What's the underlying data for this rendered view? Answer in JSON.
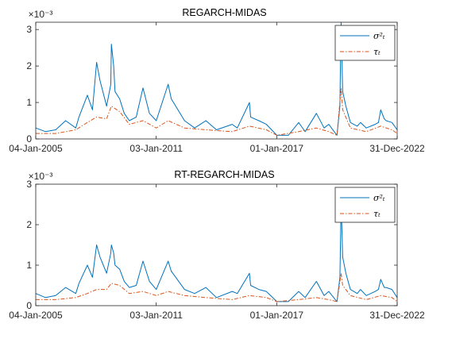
{
  "chart_data": [
    {
      "type": "line",
      "title": "REGARCH-MIDAS",
      "exponent_label": "×10⁻³",
      "xlabel": "",
      "ylabel": "",
      "xlim": [
        "2005-01-04",
        "2022-12-31"
      ],
      "ylim": [
        0,
        3.2
      ],
      "yscale_factor": 0.001,
      "yticks": [
        "0",
        "1",
        "2",
        "3"
      ],
      "xticks": [
        "04-Jan-2005",
        "03-Jan-2011",
        "01-Jan-2017",
        "31-Dec-2022"
      ],
      "grid": false,
      "legend": {
        "placement": "top-right",
        "entries": [
          "σ²ₜ",
          "τₜ"
        ]
      },
      "series": [
        {
          "name": "σ²ₜ",
          "color": "#0072BD",
          "style": "solid",
          "x": [
            "2005-01-04",
            "2005-07-01",
            "2006-01-02",
            "2006-07-01",
            "2007-01-02",
            "2007-03-01",
            "2007-08-01",
            "2007-11-01",
            "2008-01-15",
            "2008-03-17",
            "2008-07-15",
            "2008-09-29",
            "2008-10-10",
            "2008-11-20",
            "2008-12-15",
            "2009-03-09",
            "2009-06-01",
            "2009-09-01",
            "2010-01-04",
            "2010-05-07",
            "2010-09-01",
            "2011-01-03",
            "2011-08-08",
            "2011-10-04",
            "2012-06-01",
            "2012-12-01",
            "2013-06-24",
            "2014-01-02",
            "2014-10-15",
            "2015-01-15",
            "2015-08-24",
            "2015-09-15",
            "2016-02-11",
            "2016-06-27",
            "2017-01-03",
            "2017-08-01",
            "2018-02-05",
            "2018-06-01",
            "2018-12-24",
            "2019-05-13",
            "2019-08-05",
            "2020-01-02",
            "2020-02-24",
            "2020-03-09",
            "2020-03-16",
            "2020-03-23",
            "2020-04-15",
            "2020-06-11",
            "2020-09-01",
            "2021-01-04",
            "2021-03-04",
            "2021-06-18",
            "2021-11-26",
            "2022-01-24",
            "2022-03-07",
            "2022-05-09",
            "2022-06-13",
            "2022-09-26",
            "2022-12-31"
          ],
          "y": [
            0.3,
            0.2,
            0.25,
            0.5,
            0.3,
            0.6,
            1.2,
            0.8,
            2.1,
            1.6,
            0.9,
            1.5,
            2.6,
            2.0,
            1.3,
            1.1,
            0.7,
            0.5,
            0.6,
            1.4,
            0.7,
            0.5,
            1.5,
            1.1,
            0.5,
            0.3,
            0.5,
            0.25,
            0.4,
            0.3,
            1.0,
            0.6,
            0.5,
            0.4,
            0.1,
            0.1,
            0.45,
            0.2,
            0.7,
            0.3,
            0.4,
            0.1,
            0.9,
            2.6,
            3.2,
            2.8,
            1.3,
            0.9,
            0.45,
            0.35,
            0.45,
            0.3,
            0.4,
            0.45,
            0.8,
            0.55,
            0.5,
            0.45,
            0.25
          ]
        },
        {
          "name": "τₜ",
          "color": "#D95319",
          "style": "dashdot",
          "x": [
            "2005-01-04",
            "2006-01-02",
            "2007-01-02",
            "2007-08-01",
            "2008-01-15",
            "2008-07-15",
            "2008-10-10",
            "2009-03-09",
            "2009-09-01",
            "2010-05-07",
            "2011-01-03",
            "2011-08-08",
            "2012-06-01",
            "2013-06-24",
            "2014-10-15",
            "2015-08-24",
            "2016-06-27",
            "2017-01-03",
            "2018-02-05",
            "2018-12-24",
            "2019-08-05",
            "2020-01-02",
            "2020-03-16",
            "2020-04-15",
            "2020-09-01",
            "2021-06-18",
            "2022-03-07",
            "2022-09-26",
            "2022-12-31"
          ],
          "y": [
            0.15,
            0.15,
            0.25,
            0.45,
            0.6,
            0.55,
            0.9,
            0.75,
            0.4,
            0.5,
            0.3,
            0.5,
            0.3,
            0.25,
            0.2,
            0.35,
            0.25,
            0.1,
            0.2,
            0.3,
            0.2,
            0.1,
            1.4,
            0.8,
            0.3,
            0.2,
            0.35,
            0.25,
            0.15
          ]
        }
      ]
    },
    {
      "type": "line",
      "title": "RT-REGARCH-MIDAS",
      "exponent_label": "×10⁻³",
      "xlabel": "",
      "ylabel": "",
      "xlim": [
        "2005-01-04",
        "2022-12-31"
      ],
      "ylim": [
        0,
        3.0
      ],
      "yscale_factor": 0.001,
      "yticks": [
        "0",
        "1",
        "2",
        "3"
      ],
      "xticks": [
        "04-Jan-2005",
        "03-Jan-2011",
        "01-Jan-2017",
        "31-Dec-2022"
      ],
      "grid": false,
      "legend": {
        "placement": "top-right",
        "entries": [
          "σ²ₜ",
          "τₜ"
        ]
      },
      "series": [
        {
          "name": "σ²ₜ",
          "color": "#0072BD",
          "style": "solid",
          "x": [
            "2005-01-04",
            "2005-07-01",
            "2006-01-02",
            "2006-07-01",
            "2007-01-02",
            "2007-03-01",
            "2007-08-01",
            "2007-11-01",
            "2008-01-15",
            "2008-03-17",
            "2008-07-15",
            "2008-09-29",
            "2008-10-10",
            "2008-11-20",
            "2008-12-15",
            "2009-03-09",
            "2009-06-01",
            "2009-09-01",
            "2010-01-04",
            "2010-05-07",
            "2010-09-01",
            "2011-01-03",
            "2011-08-08",
            "2011-10-04",
            "2012-06-01",
            "2012-12-01",
            "2013-06-24",
            "2014-01-02",
            "2014-10-15",
            "2015-01-15",
            "2015-08-24",
            "2015-09-15",
            "2016-02-11",
            "2016-06-27",
            "2017-01-03",
            "2017-08-01",
            "2018-02-05",
            "2018-06-01",
            "2018-12-24",
            "2019-05-13",
            "2019-08-05",
            "2020-01-02",
            "2020-02-24",
            "2020-03-09",
            "2020-03-16",
            "2020-03-23",
            "2020-04-15",
            "2020-06-11",
            "2020-09-01",
            "2021-01-04",
            "2021-03-04",
            "2021-06-18",
            "2021-11-26",
            "2022-01-24",
            "2022-03-07",
            "2022-05-09",
            "2022-06-13",
            "2022-09-26",
            "2022-12-31"
          ],
          "y": [
            0.3,
            0.2,
            0.25,
            0.45,
            0.3,
            0.55,
            1.0,
            0.7,
            1.5,
            1.2,
            0.8,
            1.3,
            1.5,
            1.3,
            1.0,
            0.9,
            0.6,
            0.45,
            0.5,
            1.1,
            0.6,
            0.4,
            1.1,
            0.85,
            0.4,
            0.3,
            0.45,
            0.2,
            0.35,
            0.3,
            0.8,
            0.5,
            0.4,
            0.35,
            0.1,
            0.1,
            0.35,
            0.2,
            0.6,
            0.25,
            0.35,
            0.1,
            0.7,
            1.9,
            2.7,
            2.3,
            1.2,
            0.8,
            0.4,
            0.3,
            0.4,
            0.25,
            0.35,
            0.4,
            0.65,
            0.45,
            0.45,
            0.4,
            0.2
          ]
        },
        {
          "name": "τₜ",
          "color": "#D95319",
          "style": "dashdot",
          "x": [
            "2005-01-04",
            "2006-01-02",
            "2007-01-02",
            "2007-08-01",
            "2008-01-15",
            "2008-07-15",
            "2008-10-10",
            "2009-03-09",
            "2009-09-01",
            "2010-05-07",
            "2011-01-03",
            "2011-08-08",
            "2012-06-01",
            "2013-06-24",
            "2014-10-15",
            "2015-08-24",
            "2016-06-27",
            "2017-01-03",
            "2018-02-05",
            "2018-12-24",
            "2019-08-05",
            "2020-01-02",
            "2020-03-16",
            "2020-04-15",
            "2020-09-01",
            "2021-06-18",
            "2022-03-07",
            "2022-09-26",
            "2022-12-31"
          ],
          "y": [
            0.15,
            0.15,
            0.2,
            0.3,
            0.4,
            0.4,
            0.55,
            0.5,
            0.3,
            0.35,
            0.25,
            0.35,
            0.25,
            0.2,
            0.15,
            0.25,
            0.2,
            0.1,
            0.15,
            0.2,
            0.15,
            0.1,
            0.8,
            0.5,
            0.25,
            0.15,
            0.25,
            0.2,
            0.1
          ]
        }
      ]
    }
  ]
}
